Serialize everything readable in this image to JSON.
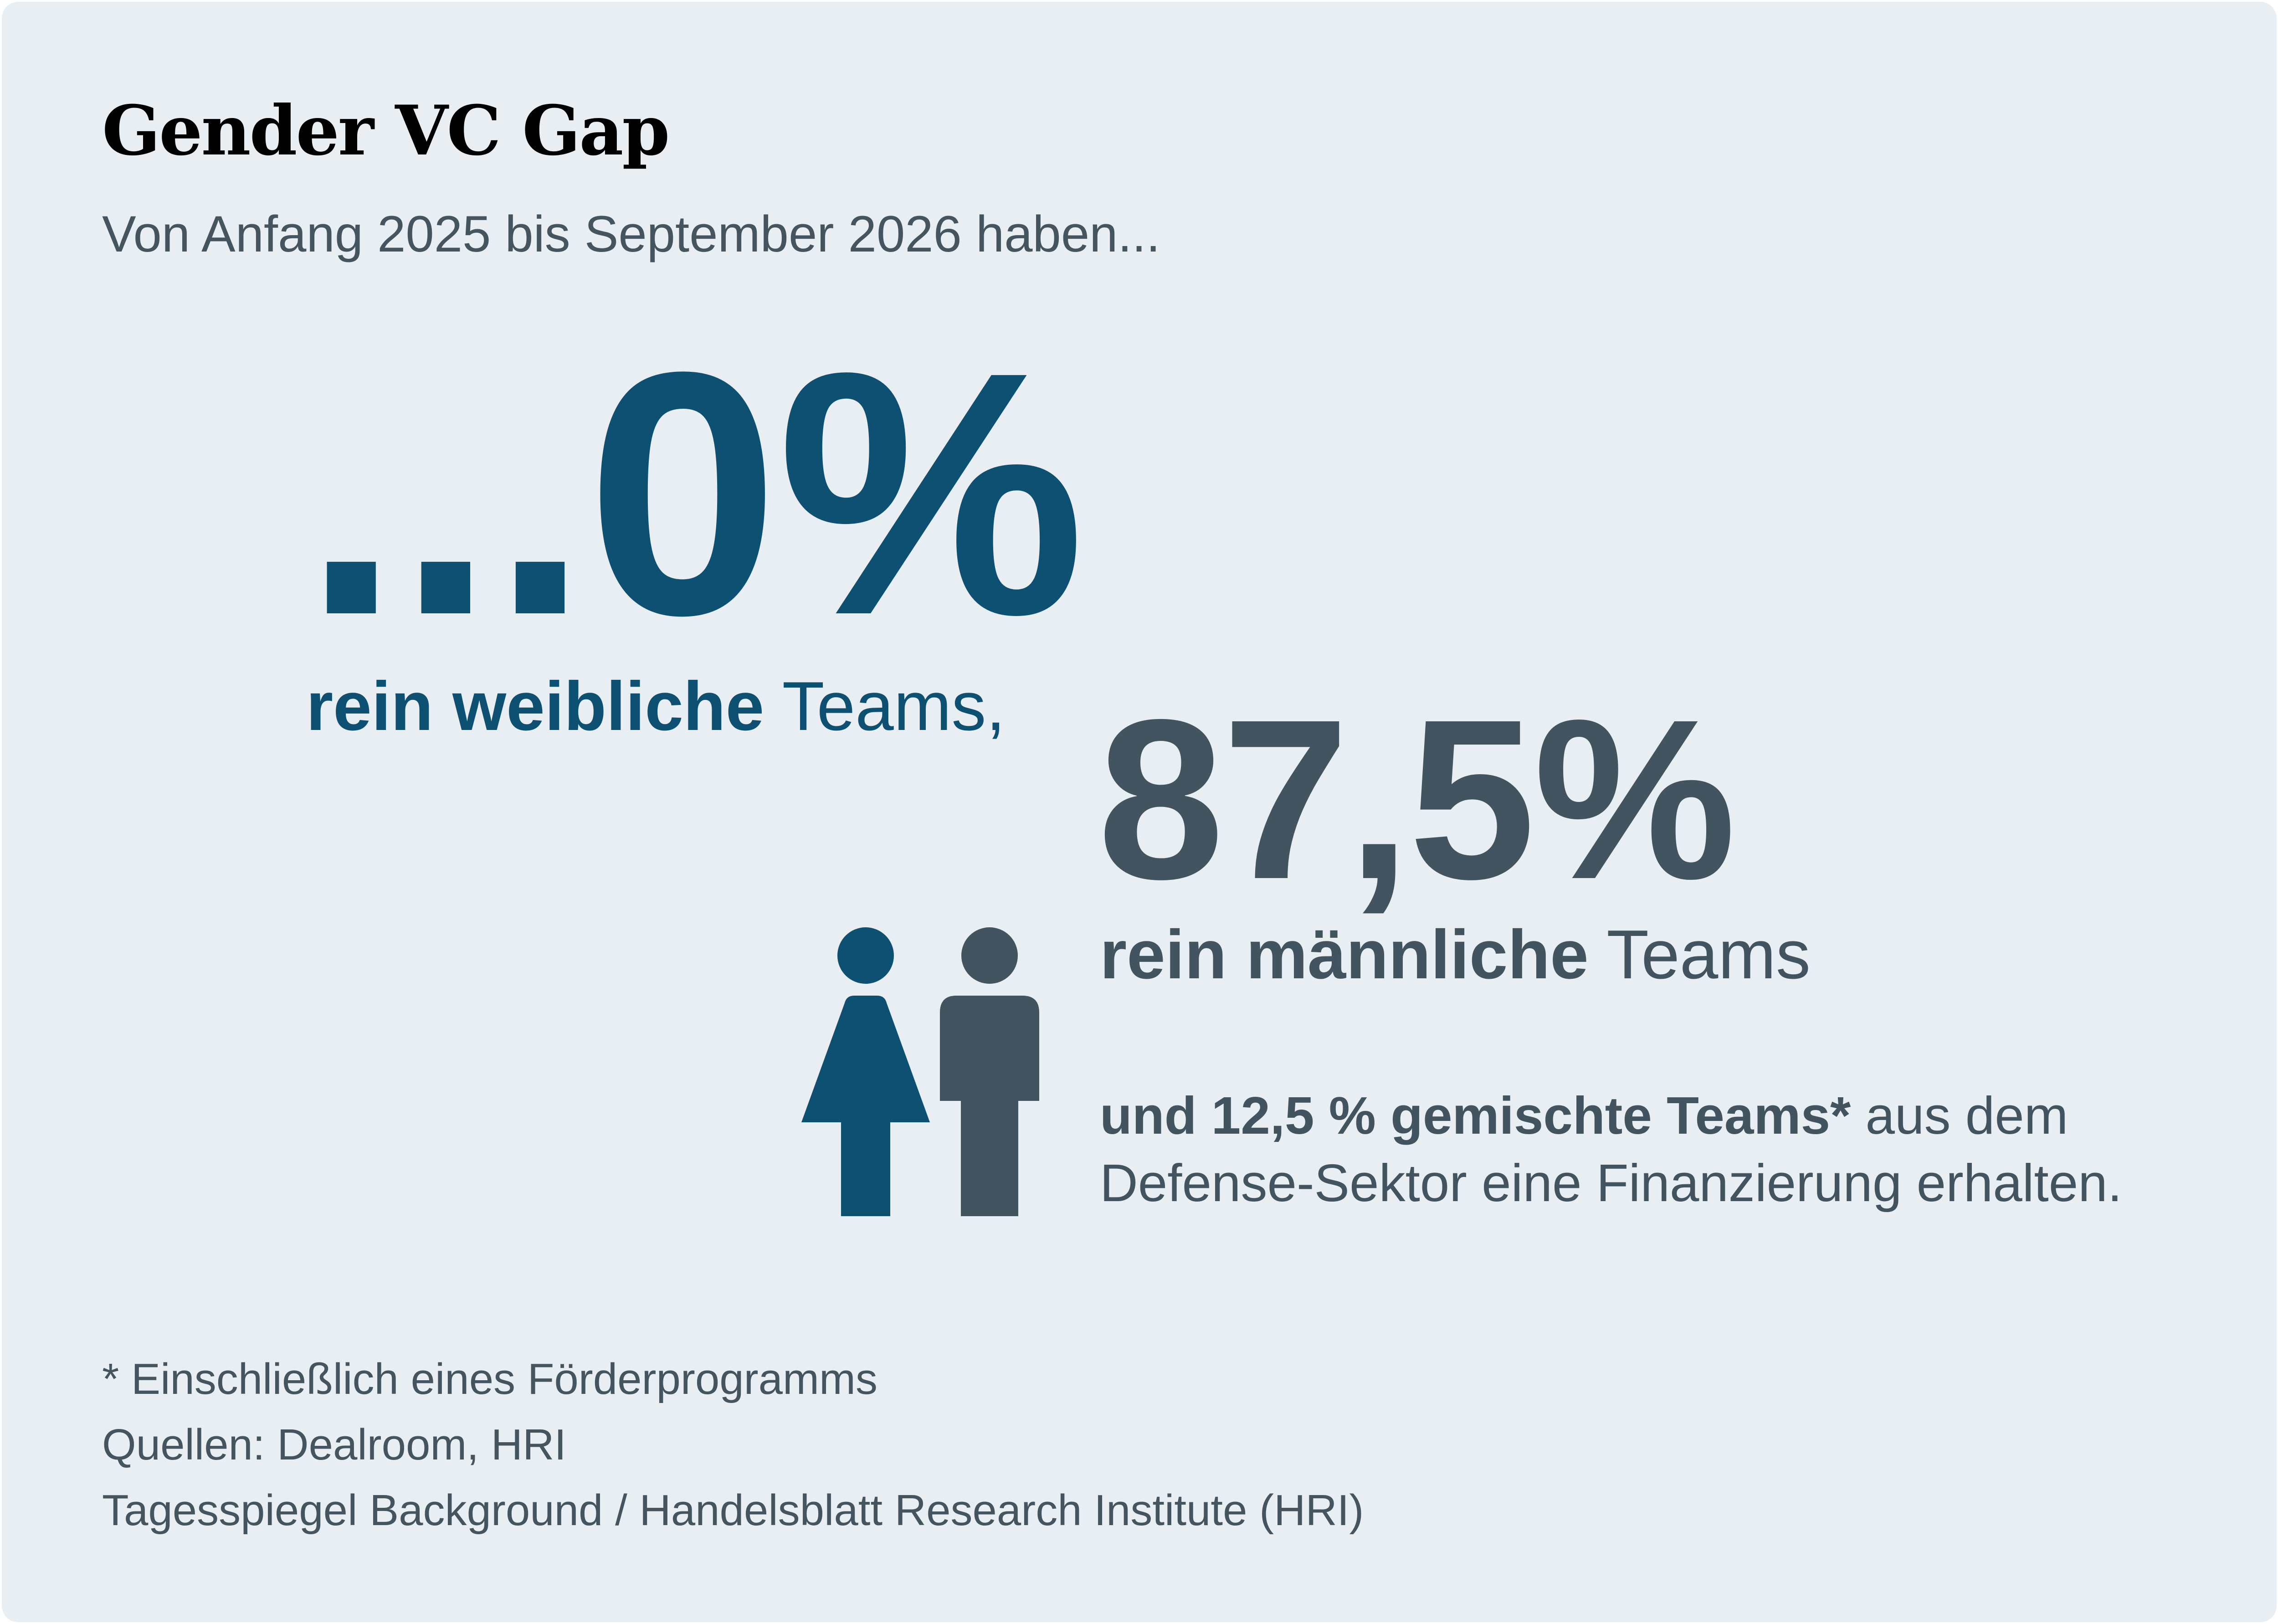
{
  "title": "Gender VC Gap",
  "subtitle": "Von Anfang 2025 bis September 2026 haben...",
  "chart_data": {
    "type": "table",
    "categories": [
      "rein weibliche Teams",
      "rein männliche Teams",
      "gemischte Teams"
    ],
    "values": [
      0,
      87.5,
      12.5
    ],
    "unit": "%"
  },
  "female": {
    "value_display": "...0%",
    "label_bold": "rein weibliche",
    "label_rest": " Teams,"
  },
  "male": {
    "value_display": "87,5%",
    "label_bold": "rein männliche",
    "label_rest": " Teams"
  },
  "mixed": {
    "bold": "und 12,5 % gemischte Teams*",
    "rest": " aus dem",
    "line2": "Defense-Sektor eine Finanzierung erhalten."
  },
  "footnotes": {
    "note": "* Einschließlich eines Förderprogramms",
    "sources": "Quellen: Dealroom, HRI",
    "credit": "Tagesspiegel Background / Handelsblatt Research Institute (HRI)"
  },
  "icons": {
    "female": "woman-icon",
    "male": "man-icon"
  },
  "colors": {
    "background": "#e8eef1",
    "female": "#0e5072",
    "male": "#42545f",
    "text": "#44555f"
  }
}
